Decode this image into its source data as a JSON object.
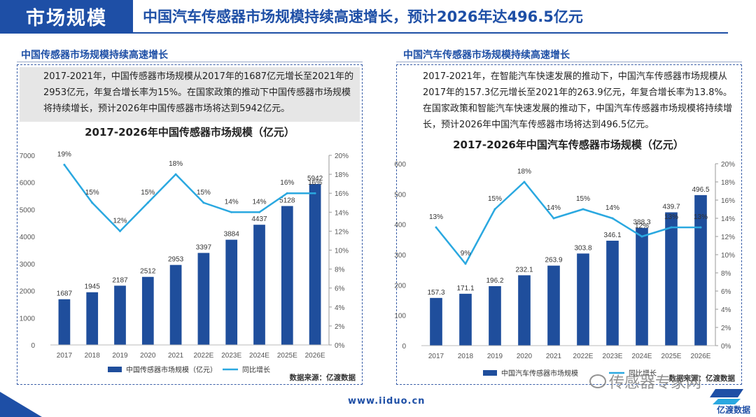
{
  "header": {
    "tag": "市场规模",
    "title": "中国汽车传感器市场规模持续高速增长，预计2026年达496.5亿元"
  },
  "left_panel": {
    "title": "中国传感器市场规模持续高速增长",
    "description": "2017-2021年，中国传感器市场规模从2017年的1687亿元增长至2021年的2953亿元，年复合增长率为15%。在国家政策的推动下中国传感器市场规模将持续增长，预计2026年中国传感器市场将达到5942亿元。"
  },
  "right_panel": {
    "title": "中国汽车传感器市场规模持续高速增长",
    "description": "2017-2021年，在智能汽车快速发展的推动下，中国汽车传感器市场规模从2017年的157.3亿元增长至2021年的263.9亿元，年复合增长率为13.8%。在国家政策和智能汽车快速发展的推动下，中国汽车传感器市场规模将持续增长，预计2026年中国汽车传感器市场将达到496.5亿元。"
  },
  "footer": {
    "url": "www.iiduo.cn",
    "logo_text": "亿渡数据",
    "watermark": "传感器专家网"
  },
  "colors": {
    "brand": "#1e4fa6",
    "bar": "#1f4e9c",
    "line": "#2aa8e0"
  },
  "chart_data": [
    {
      "type": "bar",
      "title": "2017-2026年中国传感器市场规模（亿元）",
      "categories": [
        "2017",
        "2018",
        "2019",
        "2020",
        "2021",
        "2022E",
        "2023E",
        "2024E",
        "2025E",
        "2026E"
      ],
      "series": [
        {
          "name": "中国传感器市场规模（亿元）",
          "type": "bar",
          "axis": "left",
          "values": [
            1687,
            1945,
            2187,
            2512,
            2953,
            3397,
            3884,
            4437,
            5128,
            5942
          ],
          "labels": [
            "1687",
            "1945",
            "2187",
            "2512",
            "2953",
            "3397",
            "3884",
            "4437",
            "5128",
            "5942"
          ]
        },
        {
          "name": "同比增长",
          "type": "line",
          "axis": "right",
          "values": [
            19,
            15,
            12,
            15,
            18,
            15,
            14,
            14,
            16,
            16
          ],
          "labels": [
            "19%",
            "15%",
            "12%",
            "15%",
            "18%",
            "15%",
            "14%",
            "14%",
            "16%",
            "16%"
          ]
        }
      ],
      "ylim": [
        0,
        7000
      ],
      "y_ticks": [
        "0",
        "1000",
        "2000",
        "3000",
        "4000",
        "5000",
        "6000",
        "7000"
      ],
      "y2lim": [
        0,
        20
      ],
      "y2_ticks": [
        "0%",
        "2%",
        "4%",
        "6%",
        "8%",
        "10%",
        "12%",
        "14%",
        "16%",
        "18%",
        "20%"
      ],
      "source": "数据来源：亿渡数据"
    },
    {
      "type": "bar",
      "title": "2017-2026年中国汽车传感器市场规模（亿元）",
      "categories": [
        "2017",
        "2018",
        "2019",
        "2020",
        "2021",
        "2022E",
        "2023E",
        "2024E",
        "2025E",
        "2026E"
      ],
      "series": [
        {
          "name": "中国汽车传感器市场规模",
          "type": "bar",
          "axis": "left",
          "values": [
            157.3,
            171.1,
            196.2,
            232.1,
            263.9,
            303.8,
            346.1,
            388.3,
            439.7,
            496.5
          ],
          "labels": [
            "157.3",
            "171.1",
            "196.2",
            "232.1",
            "263.9",
            "303.8",
            "346.1",
            "388.3",
            "439.7",
            "496.5"
          ]
        },
        {
          "name": "同比增长",
          "type": "line",
          "axis": "right",
          "values": [
            13,
            9,
            15,
            18,
            14,
            15,
            14,
            12,
            13,
            13
          ],
          "labels": [
            "13%",
            "9%",
            "15%",
            "18%",
            "14%",
            "15%",
            "14%",
            "12%",
            "13%",
            "13%"
          ]
        }
      ],
      "ylim": [
        0,
        600
      ],
      "y_ticks": [
        "0",
        "100",
        "200",
        "300",
        "400",
        "500",
        "600"
      ],
      "y2lim": [
        0,
        20
      ],
      "y2_ticks": [
        "0%",
        "2%",
        "4%",
        "6%",
        "8%",
        "10%",
        "12%",
        "14%",
        "16%",
        "18%",
        "20%"
      ],
      "source": "数据来源：亿渡数据"
    }
  ]
}
